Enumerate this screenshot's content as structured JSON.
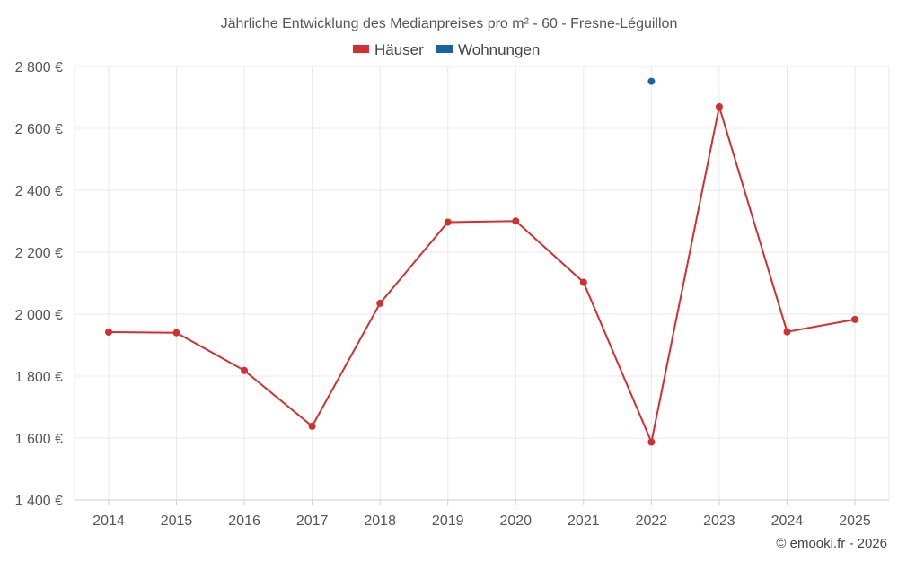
{
  "chart_data": {
    "type": "line",
    "title": "Jährliche Entwicklung des Medianpreises pro m² - 60 - Fresne-Léguillon",
    "categories": [
      "2014",
      "2015",
      "2016",
      "2017",
      "2018",
      "2019",
      "2020",
      "2021",
      "2022",
      "2023",
      "2024",
      "2025"
    ],
    "series": [
      {
        "name": "Häuser",
        "color": "#d32f2f",
        "values": [
          1942,
          1940,
          1818,
          1638,
          2035,
          2297,
          2301,
          2103,
          1587,
          2670,
          1943,
          1983
        ]
      },
      {
        "name": "Wohnungen",
        "color": "#1565a6",
        "values": [
          null,
          null,
          null,
          null,
          null,
          null,
          null,
          null,
          2752,
          null,
          null,
          null
        ]
      }
    ],
    "ylim": [
      1400,
      2800
    ],
    "yticks": [
      {
        "value": 1400,
        "label": "1 400 €"
      },
      {
        "value": 1600,
        "label": "1 600 €"
      },
      {
        "value": 1800,
        "label": "1 800 €"
      },
      {
        "value": 2000,
        "label": "2 000 €"
      },
      {
        "value": 2200,
        "label": "2 200 €"
      },
      {
        "value": 2400,
        "label": "2 400 €"
      },
      {
        "value": 2600,
        "label": "2 600 €"
      },
      {
        "value": 2800,
        "label": "2 800 €"
      }
    ],
    "grid": true,
    "legend_position": "top-center"
  },
  "footer": {
    "credit": "© emooki.fr - 2026"
  }
}
